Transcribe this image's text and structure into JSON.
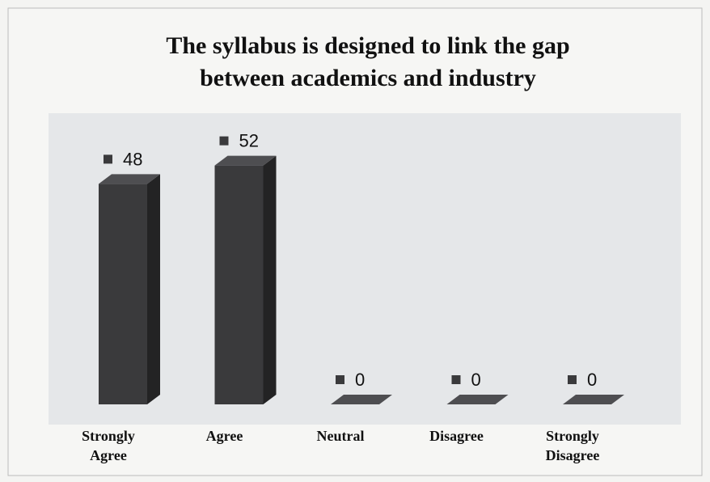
{
  "chart_data": {
    "type": "bar3d",
    "title": "The syllabus is designed to link the gap between academics and industry",
    "categories": [
      "Strongly Agree",
      "Agree",
      "Neutral",
      "Disagree",
      "Strongly Disagree"
    ],
    "values": [
      48,
      52,
      0,
      0,
      0
    ],
    "color": "#3a3a3c"
  }
}
